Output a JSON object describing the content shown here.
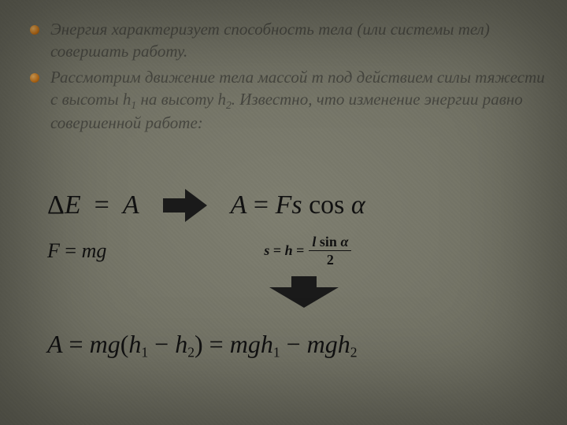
{
  "background_color": "#79796b",
  "text_color": "#474740",
  "bullet_color": "#c77418",
  "formula_color": "#111111",
  "bullets": [
    "Энергия характеризует способность тела (или системы тел) совершать работу.",
    "Рассмотрим движение тела массой m под действием силы тяжести с высоты h<sub class=\"sub\">1</sub> на высоту h<sub class=\"sub\">2</sub>. Известно, что изменение энергии равно совершенной работе:"
  ],
  "formulas": {
    "deltaE_eq_A": "ΔE = A",
    "A_eq_Fscos": "A = Fs cos α",
    "F_eq_mg": "F = mg",
    "s_eq_h_label": "s = h =",
    "frac_num": "l sin α",
    "frac_den": "2",
    "final_left": "A = mg(h",
    "final_h1": "1",
    "final_mid1": " − h",
    "final_h2": "2",
    "final_mid2": ") = mgh",
    "final_h1b": "1",
    "final_mid3": " − mgh",
    "final_h2b": "2"
  }
}
